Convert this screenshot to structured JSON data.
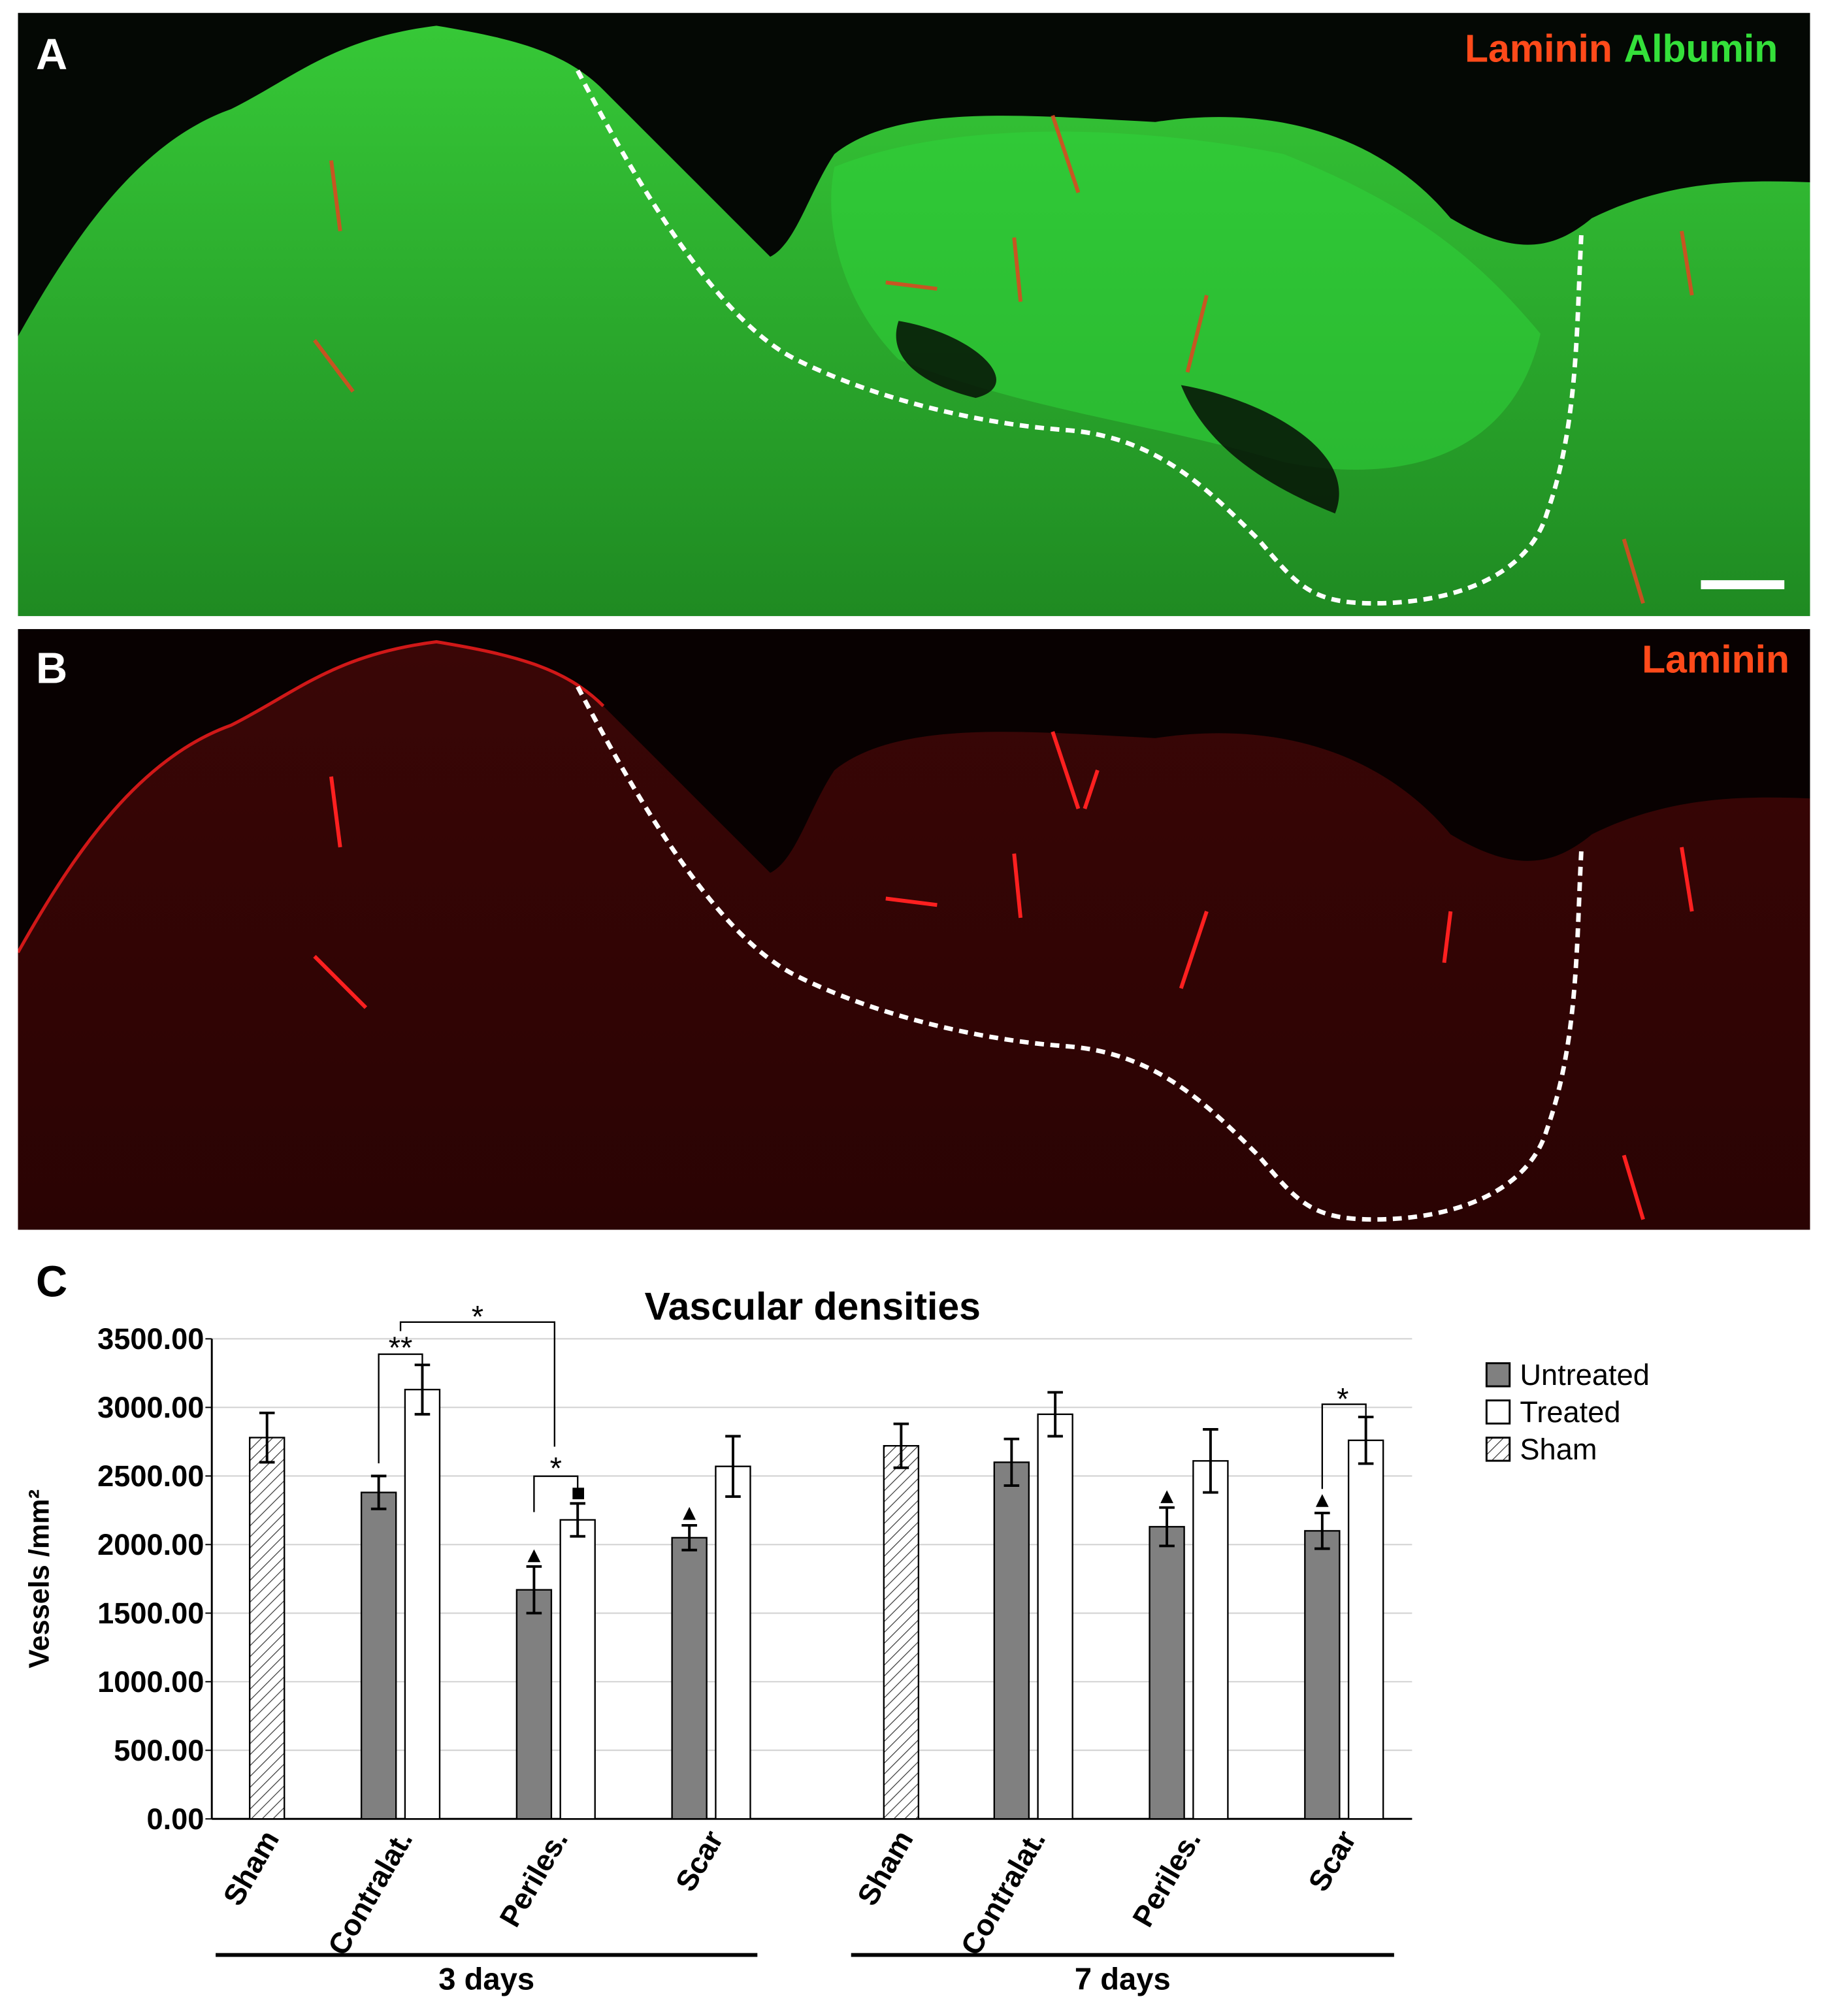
{
  "panels": [
    {
      "label": "A",
      "stains": [
        "Laminin",
        "Albumin"
      ]
    },
    {
      "label": "B",
      "stains": [
        "Laminin"
      ]
    }
  ],
  "chart_label": "C",
  "chart_data": {
    "type": "bar",
    "title": "Vascular densities",
    "y_label": "Vessels /mm²",
    "categories": [
      "Sham",
      "Contralat.",
      "Periles.",
      "Scar",
      "Sham",
      "Contralat.",
      "Periles.",
      "Scar"
    ],
    "groups": [
      {
        "name": "3 days",
        "size": 4
      },
      {
        "name": "7 days",
        "size": 4
      }
    ],
    "series": [
      {
        "name": "Untreated",
        "color": "#808080",
        "values": [
          null,
          2380,
          1670,
          2050,
          null,
          2600,
          2130,
          2100
        ],
        "errors": [
          null,
          120,
          170,
          90,
          null,
          170,
          140,
          130
        ]
      },
      {
        "name": "Treated",
        "color": "#ffffff",
        "values": [
          null,
          3130,
          2180,
          2570,
          null,
          2950,
          2610,
          2760
        ],
        "errors": [
          null,
          180,
          120,
          220,
          null,
          160,
          230,
          170
        ]
      },
      {
        "name": "Sham",
        "color": "hatch",
        "values": [
          2780,
          null,
          null,
          null,
          2720,
          null,
          null,
          null
        ],
        "errors": [
          180,
          null,
          null,
          null,
          160,
          null,
          null,
          null
        ]
      }
    ],
    "annotations": [
      "**",
      "*",
      "*",
      "*"
    ],
    "ylim": [
      0,
      3500
    ],
    "yticks": [
      {
        "value": 0,
        "label": "0.00"
      },
      {
        "value": 500,
        "label": "500.00"
      },
      {
        "value": 1000,
        "label": "1000.00"
      },
      {
        "value": 1500,
        "label": "1500.00"
      },
      {
        "value": 2000,
        "label": "2000.00"
      },
      {
        "value": 2500,
        "label": "2500.00"
      },
      {
        "value": 3000,
        "label": "3000.00"
      },
      {
        "value": 3500,
        "label": "3500.00"
      }
    ],
    "grid": true,
    "legend": "right"
  }
}
